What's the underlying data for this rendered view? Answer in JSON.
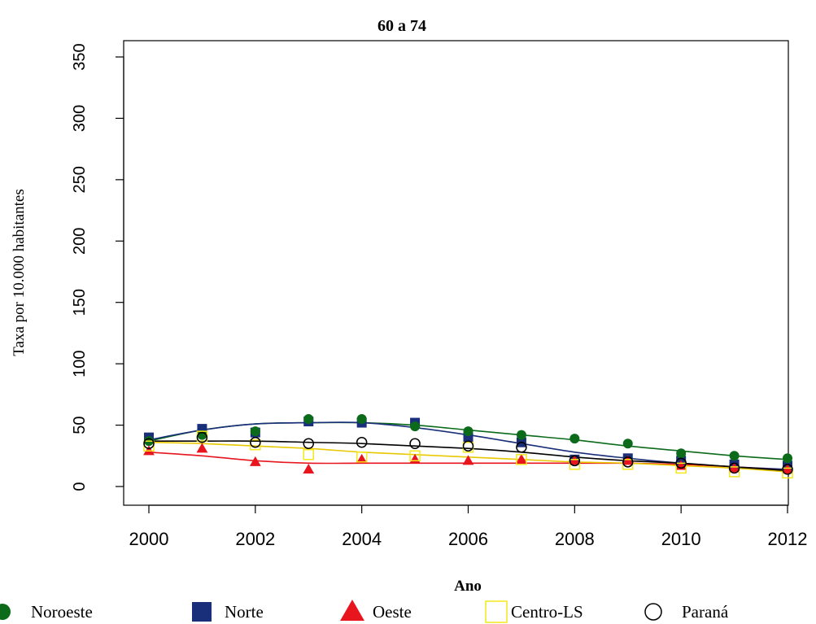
{
  "chart_data": {
    "type": "scatter",
    "title": "60 a 74",
    "xlabel": "Ano",
    "ylabel": "Taxa por 10.000 habitantes",
    "x": [
      2000,
      2001,
      2002,
      2003,
      2004,
      2005,
      2006,
      2007,
      2008,
      2009,
      2010,
      2011,
      2012
    ],
    "xticks": [
      "2000",
      "2002",
      "2004",
      "2006",
      "2008",
      "2010",
      "2012"
    ],
    "yticks": [
      "0",
      "50",
      "100",
      "150",
      "200",
      "250",
      "300",
      "350"
    ],
    "xlim": [
      2000,
      2012
    ],
    "ylim": [
      0,
      350
    ],
    "grid": false,
    "legend_position": "bottom",
    "series": [
      {
        "name": "Noroeste",
        "marker": "filled-circle",
        "color": "#0b6b1a",
        "values": [
          37,
          42,
          45,
          55,
          55,
          49,
          45,
          42,
          39,
          35,
          27,
          25,
          23
        ],
        "smooth": [
          37,
          46,
          51,
          52,
          52,
          50,
          46,
          42,
          38,
          33,
          29,
          25,
          22
        ]
      },
      {
        "name": "Norte",
        "marker": "filled-square",
        "color": "#1a2f7a",
        "values": [
          40,
          47,
          44,
          53,
          52,
          52,
          40,
          36,
          22,
          23,
          21,
          18,
          17
        ],
        "smooth": [
          38,
          46,
          51,
          52,
          52,
          48,
          42,
          35,
          28,
          23,
          19,
          16,
          14
        ]
      },
      {
        "name": "Oeste",
        "marker": "filled-triangle",
        "color": "#e8141e",
        "values": [
          29,
          31,
          20,
          14,
          22,
          22,
          21,
          22,
          21,
          21,
          17,
          15,
          14
        ],
        "smooth": [
          28,
          25,
          21,
          19,
          19,
          19,
          19,
          19,
          19,
          19,
          18,
          16,
          13
        ]
      },
      {
        "name": "Centro-LS",
        "marker": "open-square",
        "color": "#f2e81a",
        "values": [
          33,
          41,
          34,
          26,
          24,
          25,
          32,
          22,
          18,
          18,
          15,
          12,
          11
        ],
        "smooth": [
          36,
          35,
          33,
          31,
          28,
          26,
          24,
          22,
          20,
          19,
          17,
          15,
          12
        ]
      },
      {
        "name": "Paraná",
        "marker": "open-circle",
        "color": "#000000",
        "values": [
          35,
          40,
          36,
          35,
          36,
          35,
          33,
          32,
          21,
          20,
          19,
          15,
          14
        ],
        "smooth": [
          37,
          37,
          37,
          36,
          35,
          33,
          31,
          28,
          24,
          21,
          19,
          16,
          13
        ]
      }
    ]
  }
}
